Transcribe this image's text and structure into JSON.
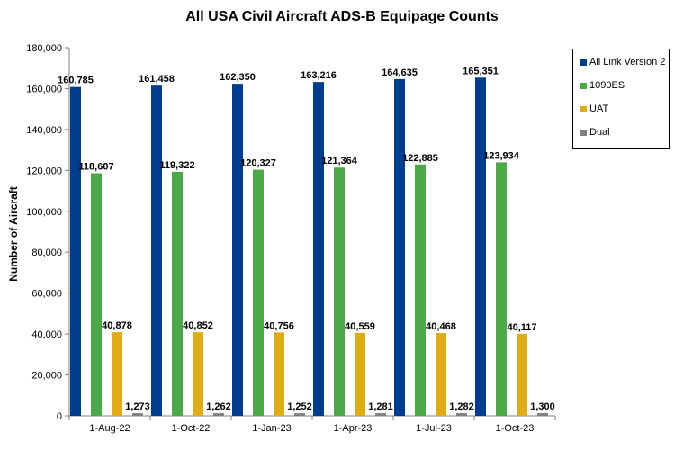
{
  "chart_data": {
    "type": "bar",
    "title": "All USA Civil Aircraft ADS-B Equipage Counts",
    "xlabel": "",
    "ylabel": "Number of Aircraft",
    "ylim": [
      0,
      180000
    ],
    "ytick_step": 20000,
    "categories": [
      "1-Aug-22",
      "1-Oct-22",
      "1-Jan-23",
      "1-Apr-23",
      "1-Jul-23",
      "1-Oct-23"
    ],
    "series": [
      {
        "name": "All Link Version 2",
        "color": "#003D8F",
        "values": [
          160785,
          161458,
          162350,
          163216,
          164635,
          165351
        ],
        "labels": [
          "160,785",
          "161,458",
          "162,350",
          "163,216",
          "164,635",
          "165,351"
        ]
      },
      {
        "name": "1090ES",
        "color": "#4BAA47",
        "values": [
          118607,
          119322,
          120327,
          121364,
          122885,
          123934
        ],
        "labels": [
          "118,607",
          "119,322",
          "120,327",
          "121,364",
          "122,885",
          "123,934"
        ]
      },
      {
        "name": "UAT",
        "color": "#E0AC16",
        "values": [
          40878,
          40852,
          40756,
          40559,
          40468,
          40117
        ],
        "labels": [
          "40,878",
          "40,852",
          "40,756",
          "40,559",
          "40,468",
          "40,117"
        ]
      },
      {
        "name": "Dual",
        "color": "#808080",
        "values": [
          1273,
          1262,
          1252,
          1281,
          1282,
          1300
        ],
        "labels": [
          "1,273",
          "1,262",
          "1,252",
          "1,281",
          "1,282",
          "1,300"
        ]
      }
    ],
    "yticks": [
      "0",
      "20,000",
      "40,000",
      "60,000",
      "80,000",
      "100,000",
      "120,000",
      "140,000",
      "160,000",
      "180,000"
    ],
    "grid": false,
    "legend_position": "right"
  }
}
